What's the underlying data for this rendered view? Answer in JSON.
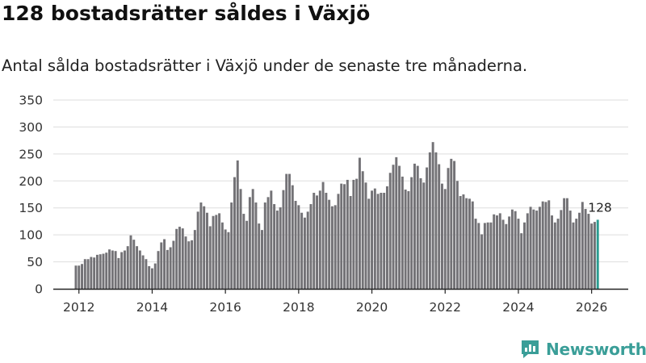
{
  "title": "128 bostadsrätter såldes i Växjö",
  "subtitle": "Antal sålda bostadsrätter i Växjö under de senaste tre månaderna.",
  "brand": {
    "name": "Newsworthy",
    "color": "#3a9e98"
  },
  "colors": {
    "bar": "#737276",
    "highlight": "#2a9d91",
    "grid": "#dddddd",
    "axis": "#222222"
  },
  "chart_data": {
    "type": "bar",
    "title": "128 bostadsrätter såldes i Växjö",
    "subtitle": "Antal sålda bostadsrätter i Växjö under de senaste tre månaderna.",
    "xlabel": "",
    "ylabel": "",
    "ylim": [
      0,
      350
    ],
    "yticks": [
      "0",
      "50",
      "100",
      "150",
      "200",
      "250",
      "300",
      "350"
    ],
    "xticks": [
      "2012",
      "2014",
      "2016",
      "2018",
      "2020",
      "2022",
      "2024",
      "2026"
    ],
    "x_range": [
      2011.3,
      2027.0
    ],
    "grid": true,
    "first_month": "2011-12",
    "values": [
      43,
      43,
      46,
      55,
      55,
      59,
      58,
      63,
      64,
      65,
      67,
      73,
      71,
      70,
      57,
      68,
      71,
      79,
      99,
      91,
      79,
      71,
      62,
      55,
      42,
      38,
      47,
      70,
      86,
      92,
      72,
      77,
      89,
      111,
      115,
      112,
      97,
      88,
      90,
      109,
      143,
      160,
      153,
      141,
      116,
      135,
      137,
      140,
      123,
      110,
      105,
      160,
      207,
      238,
      185,
      139,
      126,
      170,
      185,
      160,
      121,
      109,
      160,
      170,
      182,
      157,
      145,
      151,
      183,
      213,
      213,
      192,
      163,
      155,
      141,
      132,
      143,
      157,
      178,
      173,
      182,
      198,
      178,
      165,
      153,
      155,
      176,
      195,
      194,
      202,
      172,
      202,
      204,
      243,
      218,
      197,
      167,
      182,
      186,
      176,
      178,
      178,
      190,
      215,
      230,
      244,
      228,
      208,
      184,
      181,
      207,
      232,
      228,
      205,
      197,
      225,
      253,
      272,
      253,
      231,
      195,
      185,
      224,
      241,
      237,
      200,
      172,
      175,
      168,
      167,
      162,
      130,
      122,
      101,
      122,
      123,
      123,
      138,
      136,
      140,
      128,
      120,
      134,
      147,
      144,
      130,
      103,
      123,
      140,
      152,
      147,
      145,
      152,
      162,
      161,
      164,
      136,
      123,
      130,
      146,
      168,
      168,
      145,
      123,
      130,
      141,
      161,
      148,
      139,
      121,
      124,
      128
    ],
    "highlight_last": true,
    "annotation": {
      "label": "128",
      "target": "last-bar"
    }
  }
}
